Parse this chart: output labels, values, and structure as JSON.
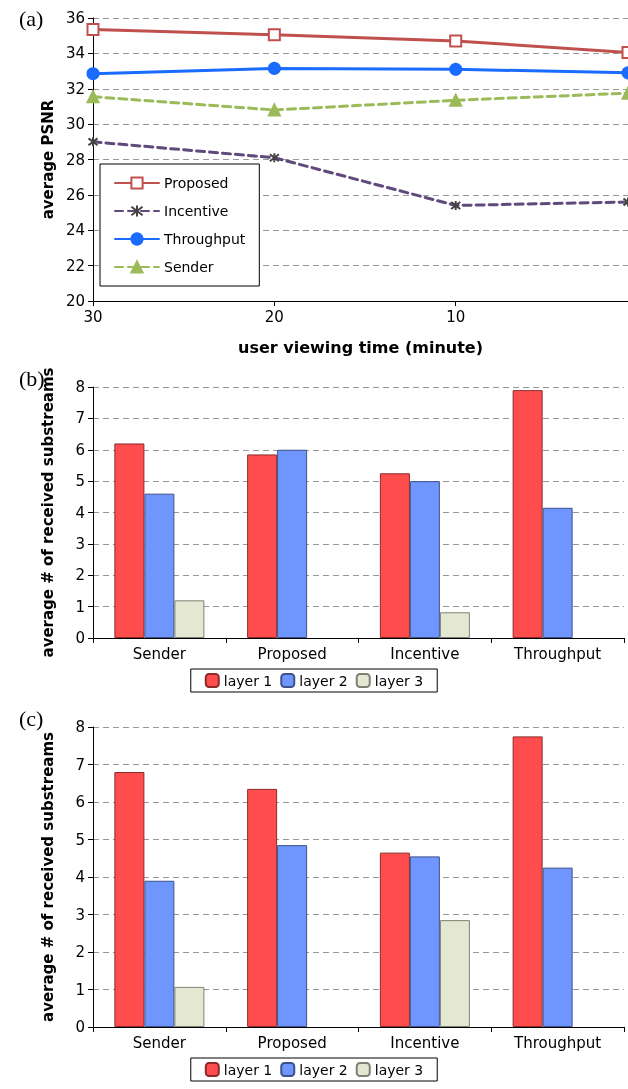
{
  "chart_data": [
    {
      "type": "line",
      "title": "(a)",
      "xlabel": "user viewing time (minute)",
      "ylabel": "average PSNR",
      "x": [
        30,
        20,
        10,
        0.5
      ],
      "xlim": [
        30,
        0.5
      ],
      "xticks": [
        30,
        20,
        10
      ],
      "ylim": [
        20,
        36
      ],
      "yticks": [
        20,
        22,
        24,
        26,
        28,
        30,
        32,
        34,
        36
      ],
      "grid": "y",
      "legend": "bottom left",
      "series": [
        {
          "name": "Proposed",
          "color": "#c0504d",
          "marker": "square",
          "line_style": "solid",
          "values": [
            35.35,
            35.05,
            34.7,
            34.05
          ]
        },
        {
          "name": "Incentive",
          "color": "#604a7b",
          "marker": "cross",
          "line_style": "dashed",
          "values": [
            29.0,
            28.1,
            25.4,
            25.6
          ]
        },
        {
          "name": "Throughput",
          "color": "#1a6cff",
          "marker": "circle",
          "line_style": "solid",
          "values": [
            32.85,
            33.15,
            33.1,
            32.9
          ]
        },
        {
          "name": "Sender",
          "color": "#9bbb59",
          "marker": "triangle",
          "line_style": "dashed",
          "values": [
            31.55,
            30.8,
            31.35,
            31.75
          ]
        }
      ]
    },
    {
      "type": "bar",
      "title": "(b)",
      "ylabel": "average # of received substreams",
      "categories": [
        "Sender",
        "Proposed",
        "Incentive",
        "Throughput"
      ],
      "ylim": [
        0,
        8
      ],
      "yticks": [
        0,
        1,
        2,
        3,
        4,
        5,
        6,
        7,
        8
      ],
      "grid": "y",
      "legend": "bottom",
      "series": [
        {
          "name": "layer 1",
          "color": "#ff4d4d",
          "values": [
            6.2,
            5.85,
            5.25,
            7.9
          ]
        },
        {
          "name": "layer 2",
          "color": "#6f95ff",
          "values": [
            4.6,
            6.0,
            5.0,
            4.15
          ]
        },
        {
          "name": "layer 3",
          "color": "#e4e8d2",
          "values": [
            1.2,
            null,
            0.82,
            null
          ]
        }
      ]
    },
    {
      "type": "bar",
      "title": "(c)",
      "ylabel": "average # of received substreams",
      "categories": [
        "Sender",
        "Proposed",
        "Incentive",
        "Throughput"
      ],
      "ylim": [
        0,
        8
      ],
      "yticks": [
        0,
        1,
        2,
        3,
        4,
        5,
        6,
        7,
        8
      ],
      "grid": "y",
      "legend": "bottom",
      "series": [
        {
          "name": "layer 1",
          "color": "#ff4d4d",
          "values": [
            6.8,
            6.35,
            4.65,
            7.75
          ]
        },
        {
          "name": "layer 2",
          "color": "#6f95ff",
          "values": [
            3.9,
            4.85,
            4.55,
            4.25
          ]
        },
        {
          "name": "layer 3",
          "color": "#e4e8d2",
          "values": [
            1.07,
            null,
            2.85,
            null
          ]
        }
      ]
    }
  ]
}
